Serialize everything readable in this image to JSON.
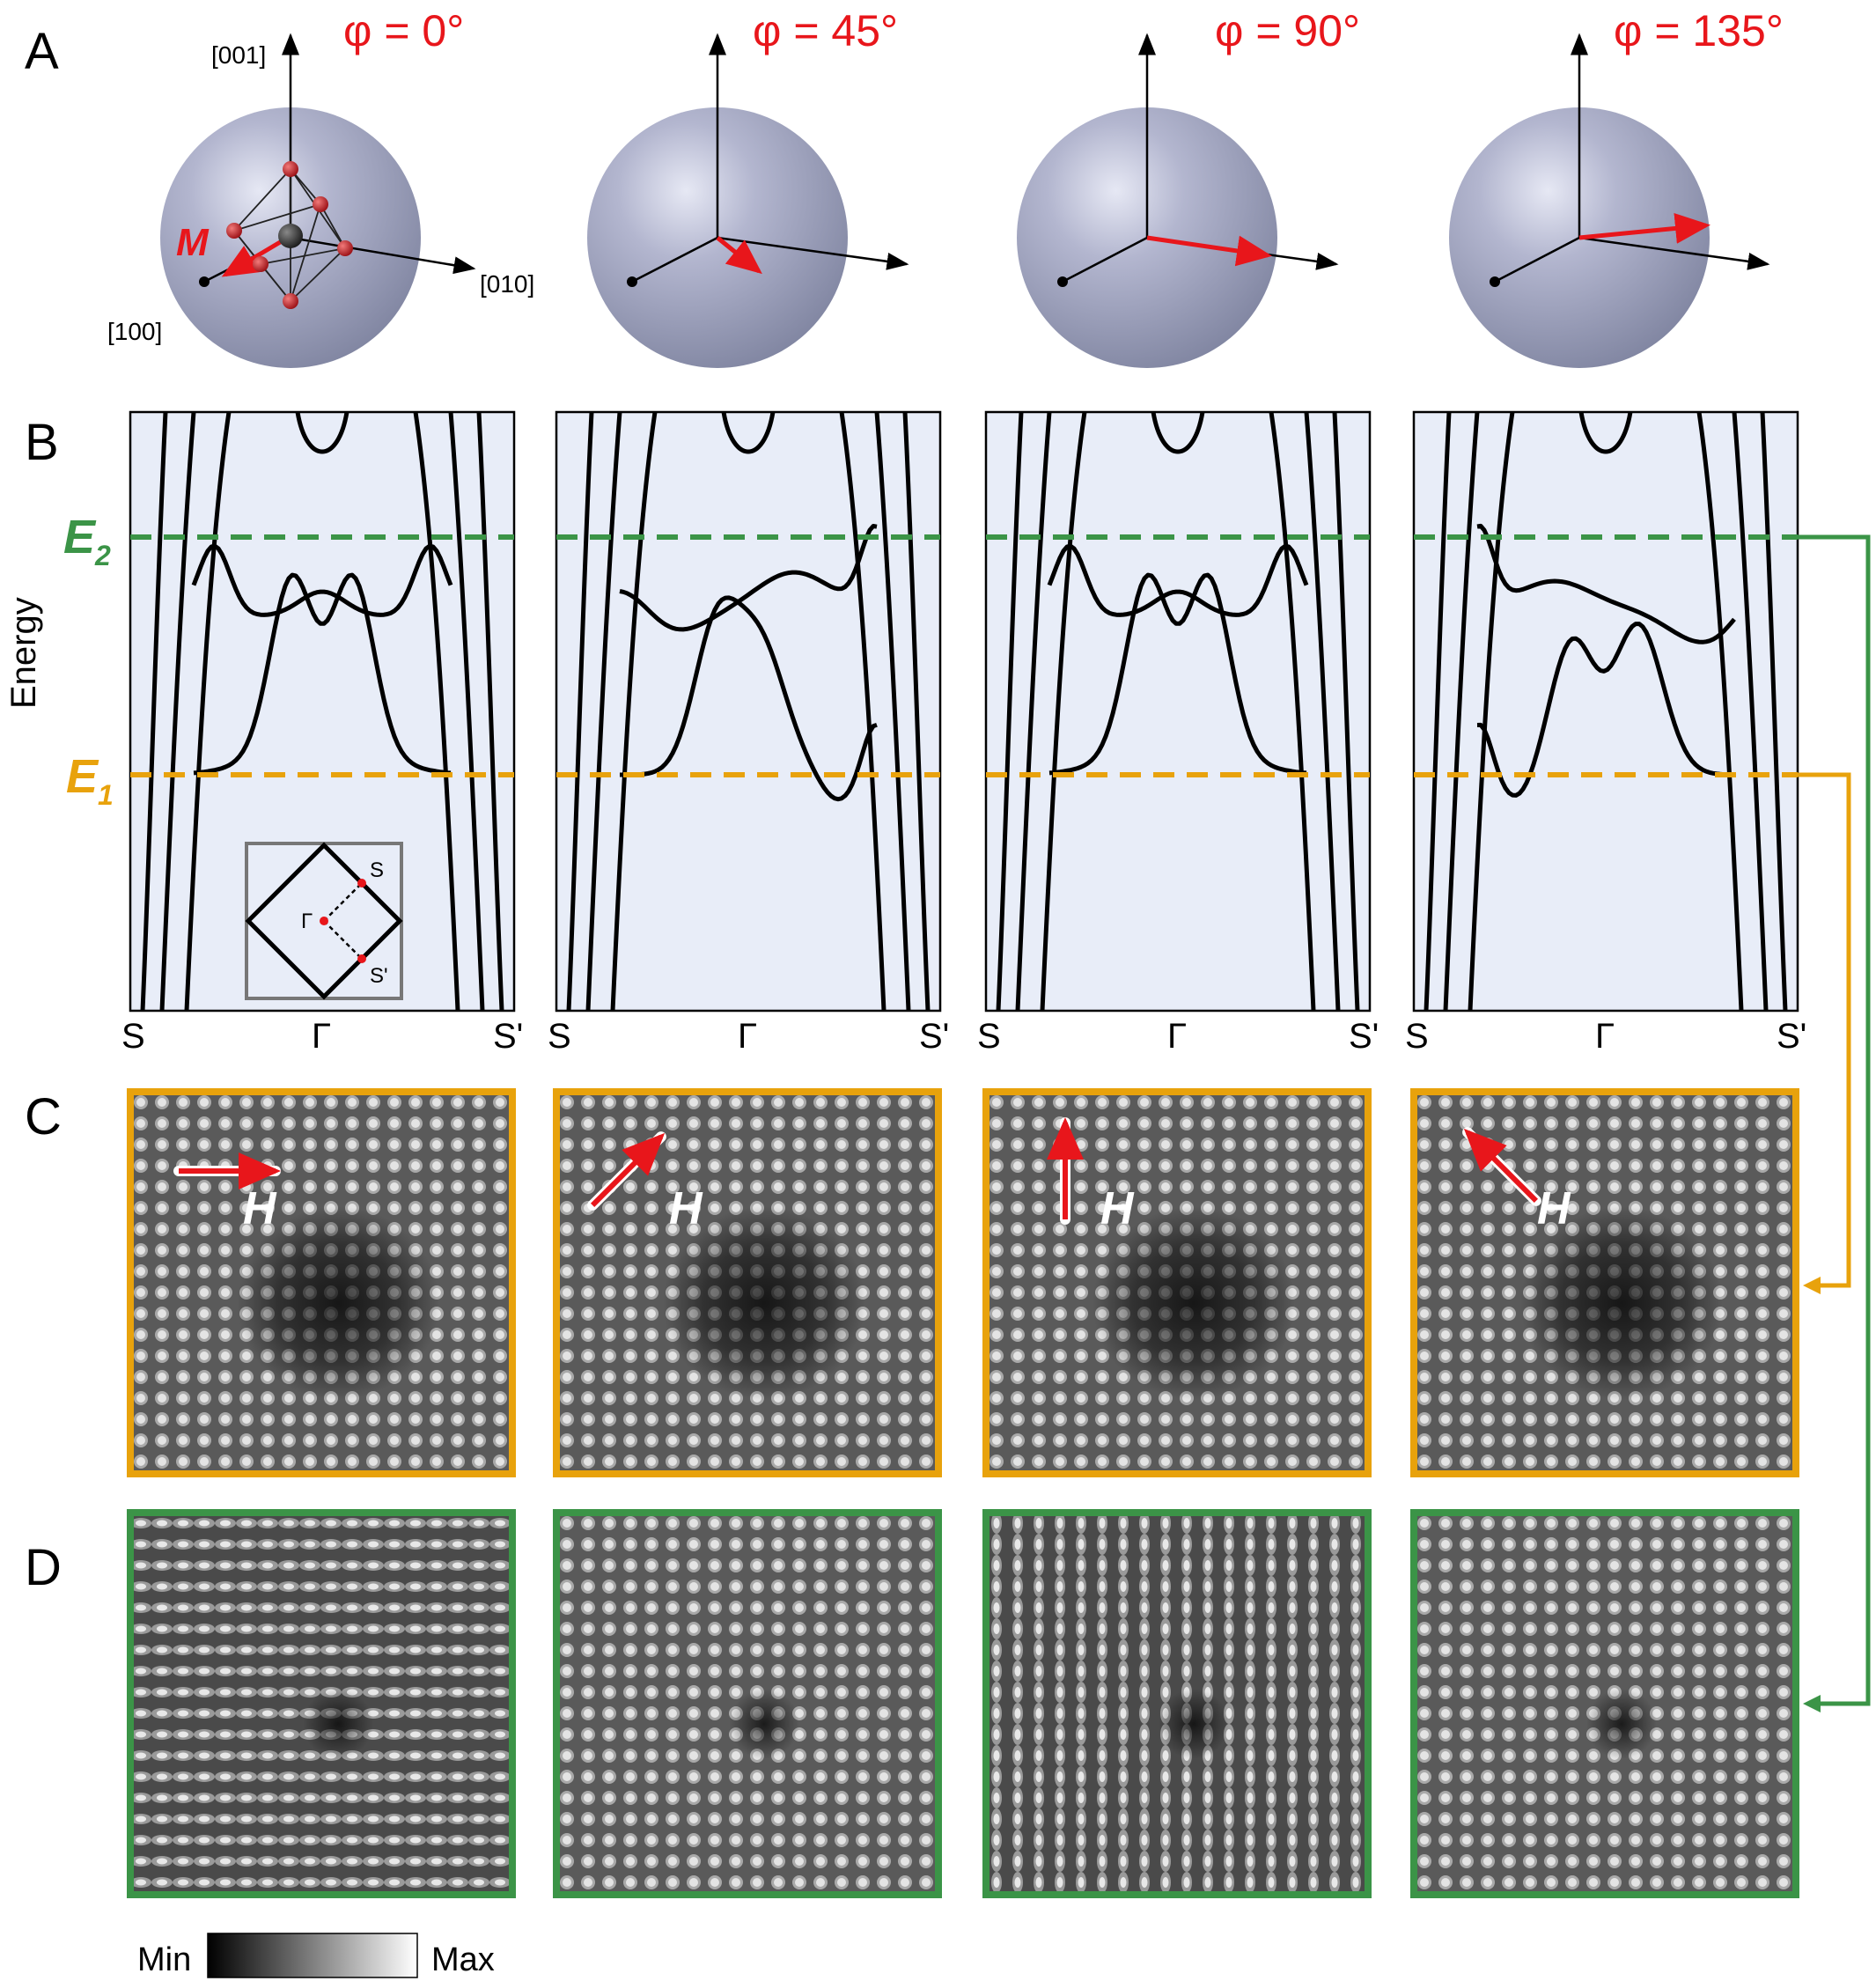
{
  "panels": {
    "A": "A",
    "B": "B",
    "C": "C",
    "D": "D"
  },
  "angles": [
    "φ = 0°",
    "φ = 45°",
    "φ = 90°",
    "φ = 135°"
  ],
  "angle_values_deg": [
    0,
    45,
    90,
    135
  ],
  "axes": {
    "z": "[001]",
    "y": "[010]",
    "x": "[100]"
  },
  "magnetization_label": "M",
  "energy_axis_label": "Energy",
  "energy_levels": {
    "E1": {
      "letter": "E",
      "subscript": "1",
      "color": "#e8a20c"
    },
    "E2": {
      "letter": "E",
      "subscript": "2",
      "color": "#3b9447"
    }
  },
  "k_points": {
    "left": "S",
    "center": "Γ",
    "right": "S'"
  },
  "inset_labels": {
    "s": "S",
    "gamma": "Γ",
    "s_prime": "S'"
  },
  "field_label": "H",
  "colorbar": {
    "min": "Min",
    "max": "Max"
  },
  "colors": {
    "band_bg": "#e8edf8",
    "arrow_red": "#e8161b",
    "e1_orange": "#e8a20c",
    "e2_green": "#3b9447",
    "sphere": "#8f94b4"
  }
}
